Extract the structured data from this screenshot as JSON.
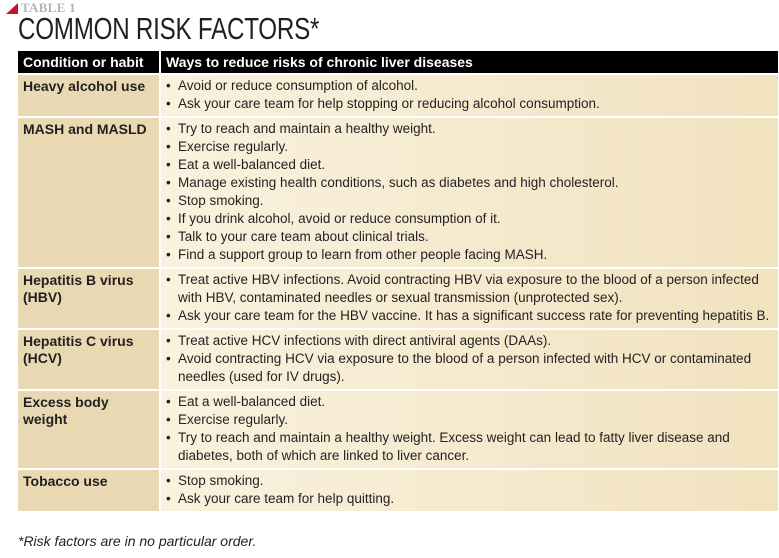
{
  "header": {
    "label": "TABLE 1",
    "title": "COMMON RISK FACTORS*"
  },
  "table": {
    "columns": [
      "Condition or habit",
      "Ways to reduce risks of chronic liver diseases"
    ],
    "rows": [
      {
        "condition": "Heavy alcohol use",
        "ways": [
          "Avoid or reduce consumption of alcohol.",
          "Ask your care team for help stopping or reducing alcohol consumption."
        ]
      },
      {
        "condition": "MASH and MASLD",
        "ways": [
          "Try to reach and maintain a healthy weight.",
          "Exercise regularly.",
          "Eat a well-balanced diet.",
          "Manage existing health conditions, such as diabetes and high cholesterol.",
          "Stop smoking.",
          "If you drink alcohol, avoid or reduce consumption of it.",
          "Talk to your care team about clinical trials.",
          "Find a support group to learn from other people facing MASH."
        ]
      },
      {
        "condition": "Hepatitis B virus (HBV)",
        "ways": [
          "Treat active HBV infections. Avoid contracting HBV via exposure to the blood of a person infected with HBV, contaminated needles or sexual transmission (unprotected sex).",
          "Ask your care team for the HBV vaccine. It has a significant success rate for preventing hepatitis B."
        ]
      },
      {
        "condition": "Hepatitis C virus (HCV)",
        "ways": [
          "Treat active HCV infections with direct antiviral agents (DAAs).",
          "Avoid contracting HCV via exposure to the blood of a person infected with HCV or contaminated needles (used for IV drugs)."
        ]
      },
      {
        "condition": "Excess body weight",
        "ways": [
          "Eat a well-balanced diet.",
          "Exercise regularly.",
          "Try to reach and maintain a healthy weight. Excess weight can lead to fatty liver disease and diabetes, both of which are linked to liver cancer."
        ]
      },
      {
        "condition": "Tobacco use",
        "ways": [
          "Stop smoking.",
          "Ask your care team for help quitting."
        ]
      }
    ]
  },
  "footnote": "*Risk factors are in no particular order.",
  "colors": {
    "accent_triangle": "#c8102e",
    "header_bg": "#000000",
    "condition_bg": "#e9d9b3",
    "ways_bg_light": "#faf2df",
    "ways_bg_dark": "#f1e2bf"
  }
}
